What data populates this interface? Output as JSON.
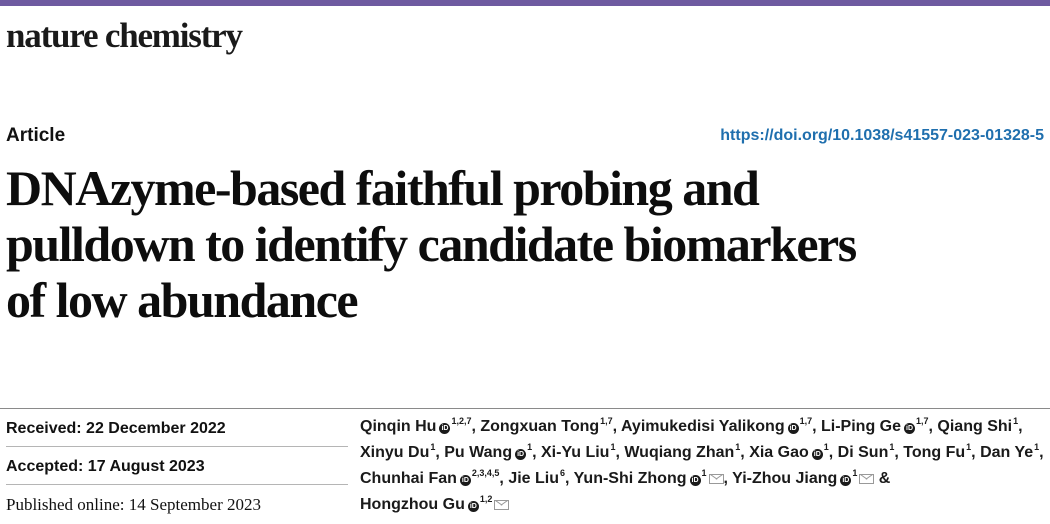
{
  "brand": {
    "accent": "#6e5aa0",
    "link_color": "#1f6fae"
  },
  "journal": "nature chemistry",
  "article_type": "Article",
  "doi": "https://doi.org/10.1038/s41557-023-01328-5",
  "title_lines": [
    "DNAzyme-based faithful probing and",
    "pulldown to identify candidate biomarkers",
    "of low abundance"
  ],
  "dates": {
    "received": "Received: 22 December 2022",
    "accepted": "Accepted: 17 August 2023",
    "published": "Published online: 14 September 2023"
  },
  "authors": [
    {
      "name": "Qinqin Hu",
      "orcid": true,
      "aff": "1,2,7",
      "mail": false
    },
    {
      "name": "Zongxuan Tong",
      "orcid": false,
      "aff": "1,7",
      "mail": false
    },
    {
      "name": "Ayimukedisi Yalikong",
      "orcid": true,
      "aff": "1,7",
      "mail": false
    },
    {
      "name": "Li-Ping Ge",
      "orcid": true,
      "aff": "1,7",
      "mail": false
    },
    {
      "name": "Qiang Shi",
      "orcid": false,
      "aff": "1",
      "mail": false
    },
    {
      "name": "Xinyu Du",
      "orcid": false,
      "aff": "1",
      "mail": false
    },
    {
      "name": "Pu Wang",
      "orcid": true,
      "aff": "1",
      "mail": false
    },
    {
      "name": "Xi-Yu Liu",
      "orcid": false,
      "aff": "1",
      "mail": false
    },
    {
      "name": "Wuqiang Zhan",
      "orcid": false,
      "aff": "1",
      "mail": false
    },
    {
      "name": "Xia Gao",
      "orcid": true,
      "aff": "1",
      "mail": false
    },
    {
      "name": "Di Sun",
      "orcid": false,
      "aff": "1",
      "mail": false
    },
    {
      "name": "Tong Fu",
      "orcid": false,
      "aff": "1",
      "mail": false
    },
    {
      "name": "Dan Ye",
      "orcid": false,
      "aff": "1",
      "mail": false
    },
    {
      "name": "Chunhai Fan",
      "orcid": true,
      "aff": "2,3,4,5",
      "mail": false
    },
    {
      "name": "Jie Liu",
      "orcid": false,
      "aff": "6",
      "mail": false
    },
    {
      "name": "Yun-Shi Zhong",
      "orcid": true,
      "aff": "1",
      "mail": true
    },
    {
      "name": "Yi-Zhou Jiang",
      "orcid": true,
      "aff": "1",
      "mail": true
    },
    {
      "name": "Hongzhou Gu",
      "orcid": true,
      "aff": "1,2",
      "mail": true
    }
  ],
  "author_connector": "&"
}
